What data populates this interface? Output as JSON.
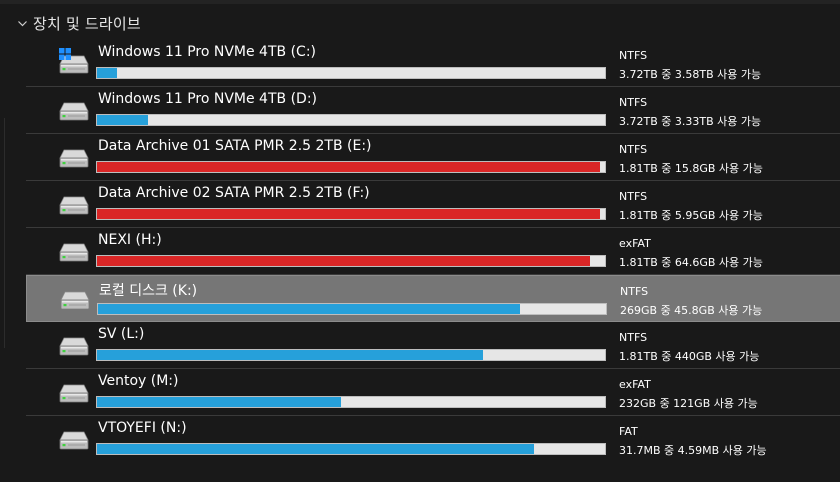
{
  "section": {
    "title": "장치 및 드라이브",
    "chevron_icon": "chevron-down-icon"
  },
  "colors": {
    "bar_normal": "#26a0da",
    "bar_full": "#da2626",
    "bar_track": "#e6e6e6",
    "selected_bg": "#767676"
  },
  "drives": [
    {
      "name": "Windows 11 Pro NVMe 4TB (C:)",
      "fs": "NTFS",
      "space": "3.72TB 중 3.58TB 사용 가능",
      "used_fraction": 0.04,
      "full": false,
      "selected": false,
      "icon": "windows-drive-icon"
    },
    {
      "name": "Windows 11 Pro NVMe 4TB (D:)",
      "fs": "NTFS",
      "space": "3.72TB 중 3.33TB 사용 가능",
      "used_fraction": 0.1,
      "full": false,
      "selected": false,
      "icon": "drive-icon"
    },
    {
      "name": "Data Archive 01 SATA PMR 2.5 2TB (E:)",
      "fs": "NTFS",
      "space": "1.81TB 중 15.8GB 사용 가능",
      "used_fraction": 0.99,
      "full": true,
      "selected": false,
      "icon": "drive-icon"
    },
    {
      "name": "Data Archive 02 SATA PMR 2.5 2TB (F:)",
      "fs": "NTFS",
      "space": "1.81TB 중 5.95GB 사용 가능",
      "used_fraction": 0.99,
      "full": true,
      "selected": false,
      "icon": "drive-icon"
    },
    {
      "name": "NEXI (H:)",
      "fs": "exFAT",
      "space": "1.81TB 중 64.6GB 사용 가능",
      "used_fraction": 0.97,
      "full": true,
      "selected": false,
      "icon": "drive-icon"
    },
    {
      "name": "로컬 디스크 (K:)",
      "fs": "NTFS",
      "space": "269GB 중 45.8GB 사용 가능",
      "used_fraction": 0.83,
      "full": false,
      "selected": true,
      "icon": "drive-icon"
    },
    {
      "name": "SV (L:)",
      "fs": "NTFS",
      "space": "1.81TB 중 440GB 사용 가능",
      "used_fraction": 0.76,
      "full": false,
      "selected": false,
      "icon": "drive-icon"
    },
    {
      "name": "Ventoy (M:)",
      "fs": "exFAT",
      "space": "232GB 중 121GB 사용 가능",
      "used_fraction": 0.48,
      "full": false,
      "selected": false,
      "icon": "drive-icon"
    },
    {
      "name": "VTOYEFI (N:)",
      "fs": "FAT",
      "space": "31.7MB 중 4.59MB 사용 가능",
      "used_fraction": 0.86,
      "full": false,
      "selected": false,
      "icon": "drive-icon"
    }
  ]
}
